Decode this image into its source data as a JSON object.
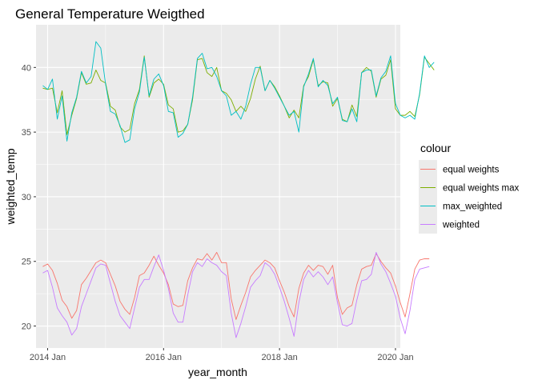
{
  "chart_data": {
    "type": "line",
    "title": "General Temperature Weigthed",
    "xlabel": "year_month",
    "ylabel": "weighted_temp",
    "x_ticks": [
      {
        "label": "2014 Jan",
        "t": 1
      },
      {
        "label": "2016 Jan",
        "t": 25
      },
      {
        "label": "2018 Jan",
        "t": 49
      },
      {
        "label": "2020 Jan",
        "t": 73
      }
    ],
    "x_range": [
      "2013 Jan",
      "2019 Dec"
    ],
    "y_ticks": [
      20,
      25,
      30,
      35,
      40
    ],
    "ylim": [
      18.3,
      43.3
    ],
    "grid": true,
    "legend": {
      "title": "colour",
      "placement": "right"
    },
    "series": [
      {
        "name": "equal weights",
        "color": "#F8766D",
        "values": [
          24.6,
          24.8,
          24.3,
          23.3,
          22.0,
          21.5,
          20.6,
          21.2,
          23.2,
          23.7,
          24.3,
          24.9,
          25.1,
          24.9,
          24.0,
          23.1,
          21.9,
          21.3,
          20.9,
          22.2,
          23.9,
          24.1,
          24.7,
          25.4,
          24.7,
          24.1,
          23.2,
          21.7,
          21.5,
          21.6,
          23.5,
          24.5,
          25.2,
          25.1,
          25.6,
          25.1,
          25.7,
          24.9,
          24.9,
          22.1,
          20.5,
          21.6,
          22.6,
          23.8,
          24.3,
          24.7,
          25.1,
          24.9,
          24.5,
          23.5,
          22.6,
          21.5,
          20.7,
          22.9,
          24.1,
          24.7,
          24.3,
          24.7,
          24.6,
          24.0,
          24.7,
          22.2,
          20.9,
          21.4,
          21.6,
          23.2,
          24.4,
          24.6,
          24.7,
          25.6,
          25.0,
          24.5,
          24.1,
          23.1,
          21.8,
          20.7,
          22.5,
          24.4,
          25.1,
          25.2,
          25.2
        ]
      },
      {
        "name": "equal weights max",
        "color": "#7CAE00",
        "values": [
          38.4,
          38.3,
          38.4,
          36.5,
          38.2,
          34.8,
          36.3,
          37.6,
          39.6,
          38.7,
          38.8,
          39.8,
          39.0,
          38.8,
          37.0,
          36.7,
          35.4,
          35.0,
          35.2,
          37.2,
          38.3,
          40.9,
          37.7,
          38.8,
          39.1,
          38.7,
          37.1,
          36.8,
          35.0,
          35.1,
          35.6,
          37.5,
          40.6,
          40.7,
          39.6,
          39.3,
          40.0,
          38.2,
          38.0,
          37.5,
          36.6,
          37.0,
          36.6,
          37.6,
          39.1,
          40.1,
          38.2,
          39.0,
          38.5,
          37.8,
          37.0,
          36.1,
          36.7,
          36.1,
          38.6,
          39.3,
          40.6,
          38.6,
          38.9,
          38.8,
          37.0,
          37.6,
          36.0,
          35.8,
          37.1,
          36.2,
          39.6,
          40.0,
          39.7,
          37.7,
          39.1,
          39.4,
          40.6,
          36.8,
          36.3,
          36.3,
          36.6,
          36.2,
          37.9,
          40.8,
          40.3,
          39.8
        ]
      },
      {
        "name": "max_weighted",
        "color": "#00BFC4",
        "values": [
          38.6,
          38.3,
          39.1,
          36.0,
          37.8,
          34.3,
          36.5,
          37.7,
          39.7,
          38.8,
          39.3,
          42.0,
          41.5,
          38.7,
          36.6,
          36.4,
          35.5,
          34.2,
          34.4,
          36.8,
          38.1,
          40.8,
          37.8,
          39.1,
          39.5,
          38.6,
          36.6,
          36.5,
          34.6,
          34.9,
          35.6,
          37.7,
          40.7,
          41.1,
          39.9,
          40.0,
          39.3,
          38.2,
          37.8,
          36.3,
          36.6,
          36.0,
          37.0,
          38.7,
          40.0,
          40.0,
          38.2,
          39.0,
          38.4,
          37.7,
          37.0,
          36.3,
          36.6,
          35.0,
          38.5,
          39.5,
          40.7,
          38.5,
          39.0,
          38.6,
          37.2,
          37.7,
          35.9,
          35.8,
          36.8,
          35.8,
          39.6,
          39.8,
          39.8,
          37.8,
          39.2,
          39.7,
          40.9,
          37.2,
          36.3,
          36.1,
          36.3,
          36.0,
          38.0,
          40.9,
          40.0,
          40.4
        ]
      },
      {
        "name": "weighted",
        "color": "#C77CFF",
        "values": [
          24.1,
          24.3,
          23.0,
          21.4,
          20.8,
          20.3,
          19.3,
          19.8,
          21.5,
          22.5,
          23.5,
          24.5,
          24.8,
          24.7,
          23.3,
          21.9,
          20.8,
          20.3,
          19.8,
          21.4,
          23.0,
          23.6,
          23.6,
          24.6,
          25.5,
          24.3,
          22.9,
          21.0,
          20.3,
          20.3,
          22.4,
          24.2,
          24.9,
          24.6,
          25.2,
          24.9,
          24.7,
          24.2,
          23.9,
          21.0,
          19.1,
          20.2,
          21.5,
          23.0,
          23.5,
          23.9,
          24.9,
          24.6,
          24.0,
          23.0,
          21.9,
          20.6,
          19.2,
          21.8,
          23.6,
          24.3,
          23.8,
          24.2,
          23.8,
          23.2,
          23.8,
          21.8,
          20.1,
          20.0,
          20.2,
          22.0,
          23.5,
          23.6,
          24.0,
          25.7,
          24.8,
          24.2,
          23.3,
          22.3,
          20.6,
          19.4,
          21.2,
          23.6,
          24.4,
          24.5,
          24.6
        ]
      }
    ]
  }
}
